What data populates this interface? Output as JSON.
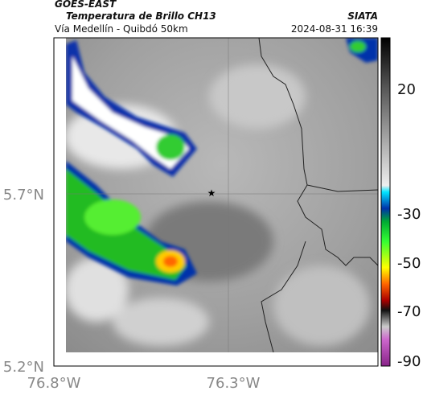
{
  "header": {
    "source": "GOES-EAST",
    "title": "Temperatura de Brillo CH13",
    "subtitle": "Vía Medellín - Quibdó 50km",
    "agency": "SIATA",
    "datetime": "2024-08-31 16:39"
  },
  "axes": {
    "lat_labels": [
      "5.7°N",
      "5.2°N"
    ],
    "lon_labels": [
      "76.8°W",
      "76.3°W"
    ]
  },
  "colorbar": {
    "ticks": [
      20,
      -30,
      -50,
      -70,
      -90
    ]
  }
}
